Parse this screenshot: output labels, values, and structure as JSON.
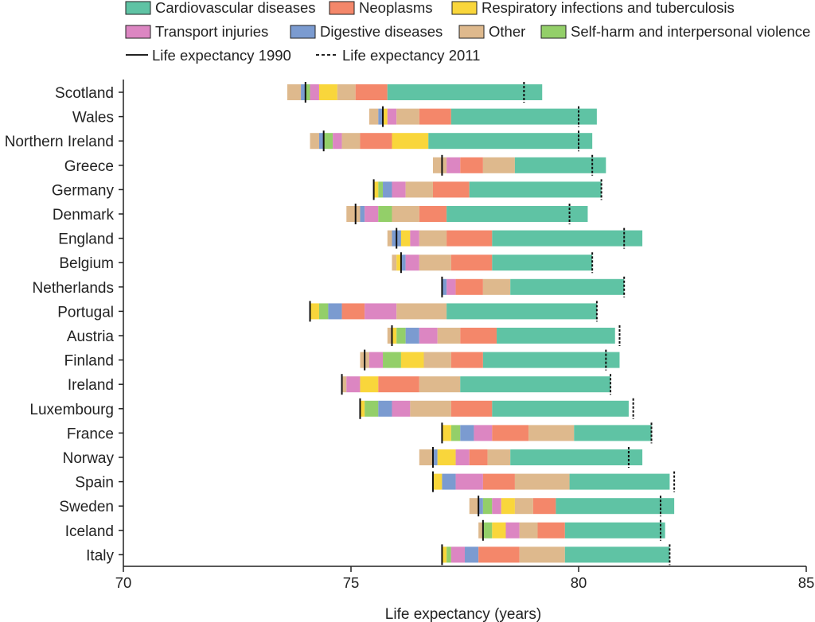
{
  "chart_data": {
    "type": "bar",
    "subtype": "stacked-horizontal",
    "xlabel": "Life expectancy (years)",
    "xlim": [
      70,
      85
    ],
    "xticks": [
      70,
      75,
      80,
      85
    ],
    "grid": false,
    "legend_position": "top",
    "categories": [
      "Scotland",
      "Wales",
      "Northern Ireland",
      "Greece",
      "Germany",
      "Denmark",
      "England",
      "Belgium",
      "Netherlands",
      "Portugal",
      "Austria",
      "Finland",
      "Ireland",
      "Luxembourg",
      "France",
      "Norway",
      "Spain",
      "Sweden",
      "Iceland",
      "Italy"
    ],
    "series_colors": {
      "Cardiovascular diseases": "#5fc3a4",
      "Neoplasms": "#f4876a",
      "Respiratory infections and tuberculosis": "#f9d63b",
      "Transport injuries": "#dc86c2",
      "Digestive diseases": "#7b9bd0",
      "Other": "#deb98d",
      "Self-harm and interpersonal violence": "#93cf69"
    },
    "legend": {
      "row1": [
        "Cardiovascular diseases",
        "Neoplasms",
        "Respiratory infections and tuberculosis"
      ],
      "row2": [
        "Transport injuries",
        "Digestive diseases",
        "Other",
        "Self-harm and interpersonal violence"
      ],
      "line1990": "Life expectancy 1990",
      "line2011": "Life expectancy 2011"
    },
    "rows": [
      {
        "country": "Scotland",
        "start": 73.6,
        "le1990": 74.0,
        "le2011": 78.8,
        "segments": [
          [
            "Other",
            0.3
          ],
          [
            "Digestive diseases",
            0.1
          ],
          [
            "Self-harm and interpersonal violence",
            0.1
          ],
          [
            "Transport injuries",
            0.2
          ],
          [
            "Respiratory infections and tuberculosis",
            0.4
          ],
          [
            "Other",
            0.4
          ],
          [
            "Neoplasms",
            0.7
          ],
          [
            "Cardiovascular diseases",
            3.4
          ]
        ]
      },
      {
        "country": "Wales",
        "start": 75.4,
        "le1990": 75.7,
        "le2011": 80.0,
        "segments": [
          [
            "Other",
            0.2
          ],
          [
            "Digestive diseases",
            0.1
          ],
          [
            "Respiratory infections and tuberculosis",
            0.1
          ],
          [
            "Transport injuries",
            0.2
          ],
          [
            "Other",
            0.5
          ],
          [
            "Neoplasms",
            0.7
          ],
          [
            "Cardiovascular diseases",
            3.2
          ]
        ]
      },
      {
        "country": "Northern Ireland",
        "start": 74.1,
        "le1990": 74.4,
        "le2011": 80.0,
        "segments": [
          [
            "Other",
            0.2
          ],
          [
            "Digestive diseases",
            0.1
          ],
          [
            "Self-harm and interpersonal violence",
            0.2
          ],
          [
            "Transport injuries",
            0.2
          ],
          [
            "Other",
            0.4
          ],
          [
            "Neoplasms",
            0.7
          ],
          [
            "Respiratory infections and tuberculosis",
            0.8
          ],
          [
            "Cardiovascular diseases",
            3.6
          ]
        ]
      },
      {
        "country": "Greece",
        "start": 76.8,
        "le1990": 77.0,
        "le2011": 80.3,
        "segments": [
          [
            "Other",
            0.3
          ],
          [
            "Transport injuries",
            0.3
          ],
          [
            "Neoplasms",
            0.5
          ],
          [
            "Other",
            0.7
          ],
          [
            "Cardiovascular diseases",
            2.0
          ]
        ]
      },
      {
        "country": "Germany",
        "start": 75.5,
        "le1990": 75.5,
        "le2011": 80.5,
        "segments": [
          [
            "Respiratory infections and tuberculosis",
            0.1
          ],
          [
            "Self-harm and interpersonal violence",
            0.1
          ],
          [
            "Digestive diseases",
            0.2
          ],
          [
            "Transport injuries",
            0.3
          ],
          [
            "Other",
            0.6
          ],
          [
            "Neoplasms",
            0.8
          ],
          [
            "Cardiovascular diseases",
            2.9
          ]
        ]
      },
      {
        "country": "Denmark",
        "start": 74.9,
        "le1990": 75.1,
        "le2011": 79.8,
        "segments": [
          [
            "Other",
            0.3
          ],
          [
            "Digestive diseases",
            0.1
          ],
          [
            "Transport injuries",
            0.3
          ],
          [
            "Self-harm and interpersonal violence",
            0.3
          ],
          [
            "Other",
            0.6
          ],
          [
            "Neoplasms",
            0.6
          ],
          [
            "Cardiovascular diseases",
            3.1
          ]
        ]
      },
      {
        "country": "England",
        "start": 75.8,
        "le1990": 76.0,
        "le2011": 81.0,
        "segments": [
          [
            "Other",
            0.1
          ],
          [
            "Digestive diseases",
            0.2
          ],
          [
            "Respiratory infections and tuberculosis",
            0.2
          ],
          [
            "Transport injuries",
            0.2
          ],
          [
            "Other",
            0.6
          ],
          [
            "Neoplasms",
            1.0
          ],
          [
            "Cardiovascular diseases",
            3.3
          ]
        ]
      },
      {
        "country": "Belgium",
        "start": 75.9,
        "le1990": 76.1,
        "le2011": 80.3,
        "segments": [
          [
            "Other",
            0.1
          ],
          [
            "Respiratory infections and tuberculosis",
            0.1
          ],
          [
            "Digestive diseases",
            0.1
          ],
          [
            "Transport injuries",
            0.3
          ],
          [
            "Other",
            0.7
          ],
          [
            "Neoplasms",
            0.9
          ],
          [
            "Cardiovascular diseases",
            2.2
          ]
        ]
      },
      {
        "country": "Netherlands",
        "start": 77.0,
        "le1990": 77.0,
        "le2011": 81.0,
        "segments": [
          [
            "Digestive diseases",
            0.1
          ],
          [
            "Transport injuries",
            0.2
          ],
          [
            "Neoplasms",
            0.6
          ],
          [
            "Other",
            0.6
          ],
          [
            "Cardiovascular diseases",
            2.5
          ]
        ]
      },
      {
        "country": "Portugal",
        "start": 74.1,
        "le1990": 74.1,
        "le2011": 80.4,
        "segments": [
          [
            "Respiratory infections and tuberculosis",
            0.2
          ],
          [
            "Self-harm and interpersonal violence",
            0.2
          ],
          [
            "Digestive diseases",
            0.3
          ],
          [
            "Neoplasms",
            0.5
          ],
          [
            "Transport injuries",
            0.7
          ],
          [
            "Other",
            1.1
          ],
          [
            "Cardiovascular diseases",
            3.3
          ]
        ]
      },
      {
        "country": "Austria",
        "start": 75.8,
        "le1990": 75.9,
        "le2011": 80.9,
        "segments": [
          [
            "Other",
            0.1
          ],
          [
            "Respiratory infections and tuberculosis",
            0.1
          ],
          [
            "Self-harm and interpersonal violence",
            0.2
          ],
          [
            "Digestive diseases",
            0.3
          ],
          [
            "Transport injuries",
            0.4
          ],
          [
            "Other",
            0.5
          ],
          [
            "Neoplasms",
            0.8
          ],
          [
            "Cardiovascular diseases",
            2.6
          ]
        ]
      },
      {
        "country": "Finland",
        "start": 75.2,
        "le1990": 75.3,
        "le2011": 80.6,
        "segments": [
          [
            "Other",
            0.2
          ],
          [
            "Transport injuries",
            0.3
          ],
          [
            "Self-harm and interpersonal violence",
            0.4
          ],
          [
            "Respiratory infections and tuberculosis",
            0.5
          ],
          [
            "Other",
            0.6
          ],
          [
            "Neoplasms",
            0.7
          ],
          [
            "Cardiovascular diseases",
            3.0
          ]
        ]
      },
      {
        "country": "Ireland",
        "start": 74.8,
        "le1990": 74.8,
        "le2011": 80.7,
        "segments": [
          [
            "Other",
            0.1
          ],
          [
            "Transport injuries",
            0.3
          ],
          [
            "Respiratory infections and tuberculosis",
            0.4
          ],
          [
            "Neoplasms",
            0.9
          ],
          [
            "Other",
            0.9
          ],
          [
            "Cardiovascular diseases",
            3.3
          ]
        ]
      },
      {
        "country": "Luxembourg",
        "start": 75.2,
        "le1990": 75.2,
        "le2011": 81.2,
        "segments": [
          [
            "Respiratory infections and tuberculosis",
            0.1
          ],
          [
            "Self-harm and interpersonal violence",
            0.3
          ],
          [
            "Digestive diseases",
            0.3
          ],
          [
            "Transport injuries",
            0.4
          ],
          [
            "Other",
            0.9
          ],
          [
            "Neoplasms",
            0.9
          ],
          [
            "Cardiovascular diseases",
            3.0
          ]
        ]
      },
      {
        "country": "France",
        "start": 77.0,
        "le1990": 77.0,
        "le2011": 81.6,
        "segments": [
          [
            "Respiratory infections and tuberculosis",
            0.2
          ],
          [
            "Self-harm and interpersonal violence",
            0.2
          ],
          [
            "Digestive diseases",
            0.3
          ],
          [
            "Transport injuries",
            0.4
          ],
          [
            "Neoplasms",
            0.8
          ],
          [
            "Other",
            1.0
          ],
          [
            "Cardiovascular diseases",
            1.7
          ]
        ]
      },
      {
        "country": "Norway",
        "start": 76.5,
        "le1990": 76.8,
        "le2011": 81.1,
        "segments": [
          [
            "Other",
            0.3
          ],
          [
            "Digestive diseases",
            0.1
          ],
          [
            "Respiratory infections and tuberculosis",
            0.4
          ],
          [
            "Transport injuries",
            0.3
          ],
          [
            "Neoplasms",
            0.4
          ],
          [
            "Other",
            0.5
          ],
          [
            "Cardiovascular diseases",
            2.9
          ]
        ]
      },
      {
        "country": "Spain",
        "start": 76.8,
        "le1990": 76.8,
        "le2011": 82.1,
        "segments": [
          [
            "Respiratory infections and tuberculosis",
            0.2
          ],
          [
            "Digestive diseases",
            0.3
          ],
          [
            "Transport injuries",
            0.6
          ],
          [
            "Neoplasms",
            0.7
          ],
          [
            "Other",
            1.2
          ],
          [
            "Cardiovascular diseases",
            2.2
          ]
        ]
      },
      {
        "country": "Sweden",
        "start": 77.6,
        "le1990": 77.8,
        "le2011": 81.8,
        "segments": [
          [
            "Other",
            0.2
          ],
          [
            "Digestive diseases",
            0.1
          ],
          [
            "Self-harm and interpersonal violence",
            0.2
          ],
          [
            "Transport injuries",
            0.2
          ],
          [
            "Respiratory infections and tuberculosis",
            0.3
          ],
          [
            "Other",
            0.4
          ],
          [
            "Neoplasms",
            0.5
          ],
          [
            "Cardiovascular diseases",
            2.6
          ]
        ]
      },
      {
        "country": "Iceland",
        "start": 77.8,
        "le1990": 77.9,
        "le2011": 81.8,
        "segments": [
          [
            "Other",
            0.1
          ],
          [
            "Self-harm and interpersonal violence",
            0.2
          ],
          [
            "Respiratory infections and tuberculosis",
            0.3
          ],
          [
            "Transport injuries",
            0.3
          ],
          [
            "Other",
            0.4
          ],
          [
            "Neoplasms",
            0.6
          ],
          [
            "Cardiovascular diseases",
            2.2
          ]
        ]
      },
      {
        "country": "Italy",
        "start": 77.0,
        "le1990": 77.0,
        "le2011": 82.0,
        "segments": [
          [
            "Respiratory infections and tuberculosis",
            0.1
          ],
          [
            "Self-harm and interpersonal violence",
            0.1
          ],
          [
            "Transport injuries",
            0.3
          ],
          [
            "Digestive diseases",
            0.3
          ],
          [
            "Neoplasms",
            0.9
          ],
          [
            "Other",
            1.0
          ],
          [
            "Cardiovascular diseases",
            2.3
          ]
        ]
      }
    ]
  }
}
